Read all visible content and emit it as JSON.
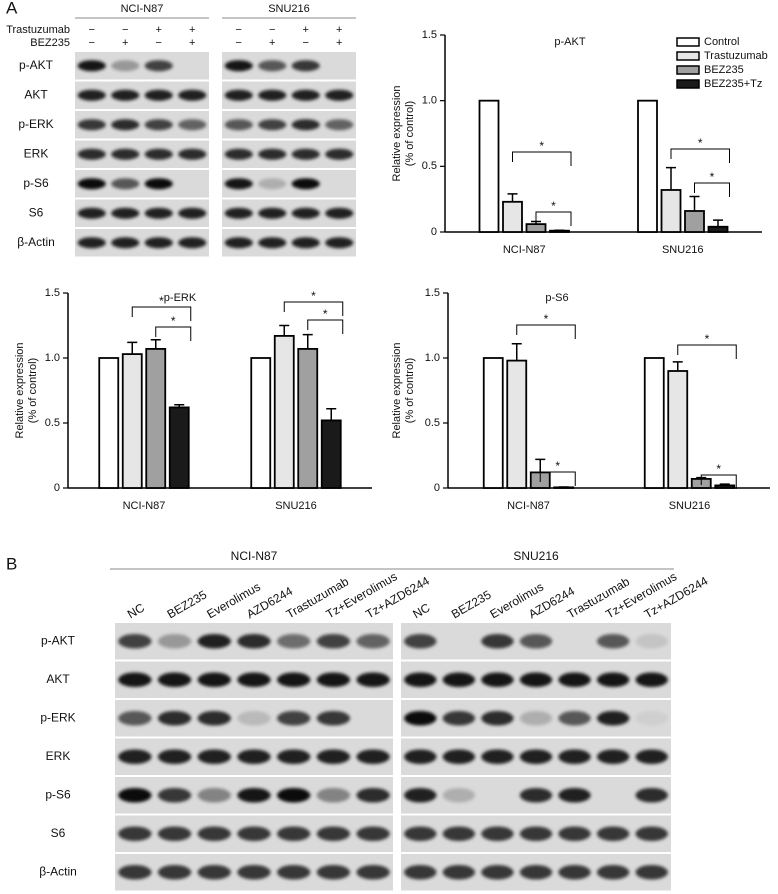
{
  "panel_a": {
    "label": "A",
    "cell_lines": [
      "NCI-N87",
      "SNU216"
    ],
    "treatments": [
      {
        "name": "Trastuzumab",
        "signs": [
          "−",
          "−",
          "+",
          "+"
        ]
      },
      {
        "name": "BEZ235",
        "signs": [
          "−",
          "+",
          "−",
          "+"
        ]
      }
    ],
    "proteins": [
      "p-AKT",
      "AKT",
      "p-ERK",
      "ERK",
      "p-S6",
      "S6",
      "β-Actin"
    ]
  },
  "panel_b": {
    "label": "B",
    "cell_lines": [
      "NCI-N87",
      "SNU216"
    ],
    "lanes": [
      "NC",
      "BEZ235",
      "Everolimus",
      "AZD6244",
      "Trastuzumab",
      "Tz+Everolimus",
      "Tz+AZD6244"
    ],
    "proteins": [
      "p-AKT",
      "AKT",
      "p-ERK",
      "ERK",
      "p-S6",
      "S6",
      "β-Actin"
    ]
  },
  "chart_data": [
    {
      "type": "bar",
      "title": "p-AKT",
      "y_label": [
        "Relative expression",
        "(% of control)"
      ],
      "categories": [
        "NCI-N87",
        "SNU216"
      ],
      "series": [
        {
          "name": "Control",
          "color": "#ffffff",
          "values": [
            1,
            1
          ],
          "errors": [
            null,
            null
          ]
        },
        {
          "name": "Trastuzumab",
          "color": "#e6e6e6",
          "values": [
            0.23,
            0.32
          ],
          "errors": [
            0.06,
            0.17
          ]
        },
        {
          "name": "BEZ235",
          "color": "#a0a0a0",
          "values": [
            0.06,
            0.16
          ],
          "errors": [
            0.02,
            0.11
          ]
        },
        {
          "name": "BEZ235+Tz",
          "color": "#1a1a1a",
          "values": [
            0.01,
            0.04
          ],
          "errors": [
            0.003,
            0.05
          ]
        }
      ],
      "ylim": [
        0,
        1.5
      ],
      "yticks": [
        0,
        0.5,
        {
          "value": 1,
          "label": "1.0"
        },
        1.5
      ],
      "legend": "top-right",
      "significance": [
        "*",
        "*",
        "*",
        "*"
      ]
    },
    {
      "type": "bar",
      "title": "p-ERK",
      "y_label": [
        "Relative expression",
        "(% of control)"
      ],
      "categories": [
        "NCI-N87",
        "SNU216"
      ],
      "series": [
        {
          "color": "#ffffff",
          "values": [
            1,
            1
          ],
          "errors": [
            null,
            null
          ]
        },
        {
          "color": "#e6e6e6",
          "values": [
            1.03,
            1.17
          ],
          "errors": [
            0.09,
            0.08
          ]
        },
        {
          "color": "#a0a0a0",
          "values": [
            1.07,
            1.07
          ],
          "errors": [
            0.07,
            0.11
          ]
        },
        {
          "color": "#1a1a1a",
          "values": [
            0.62,
            0.52
          ],
          "errors": [
            0.02,
            0.09
          ]
        }
      ],
      "ylim": [
        0,
        1.5
      ],
      "yticks": [
        0,
        0.5,
        {
          "value": 1,
          "label": "1.0"
        },
        1.5
      ],
      "significance": [
        "*",
        "*",
        "*",
        "*"
      ]
    },
    {
      "type": "bar",
      "title": "p-S6",
      "y_label": [
        "Relative expression",
        "(% of control)"
      ],
      "categories": [
        "NCI-N87",
        "SNU216"
      ],
      "series": [
        {
          "color": "#ffffff",
          "values": [
            1,
            1
          ],
          "errors": [
            null,
            null
          ]
        },
        {
          "color": "#e6e6e6",
          "values": [
            0.98,
            0.9
          ],
          "errors": [
            0.13,
            0.07
          ]
        },
        {
          "color": "#a0a0a0",
          "values": [
            0.12,
            0.07
          ],
          "errors": [
            0.1,
            0.01
          ]
        },
        {
          "color": "#1a1a1a",
          "values": [
            0.005,
            0.02
          ],
          "errors": [
            0.003,
            0.01
          ]
        }
      ],
      "ylim": [
        0,
        1.5
      ],
      "yticks": [
        0,
        0.5,
        {
          "value": 1,
          "label": "1.0"
        },
        1.5
      ],
      "significance": [
        "*",
        "*",
        "*",
        "*"
      ]
    }
  ]
}
